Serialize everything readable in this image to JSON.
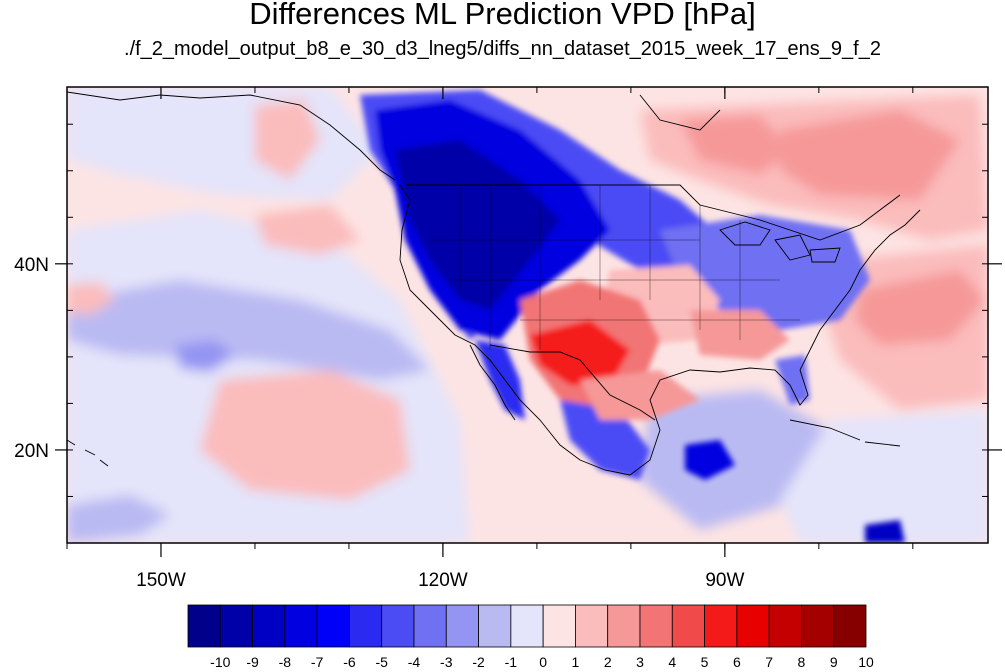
{
  "title": "Differences ML Prediction VPD [hPa]",
  "subtitle": "./f_2_model_output_b8_e_30_d3_lneg5/diffs_nn_dataset_2015_week_17_ens_9_f_2",
  "map": {
    "lon_range": [
      -160,
      -62
    ],
    "lat_range": [
      10,
      59
    ],
    "lon_ticks": [
      {
        "value": -150,
        "label": "150W"
      },
      {
        "value": -120,
        "label": "120W"
      },
      {
        "value": -90,
        "label": "90W"
      }
    ],
    "lat_ticks": [
      {
        "value": 40,
        "label": "40N"
      },
      {
        "value": 20,
        "label": "20N"
      }
    ],
    "minor_lon_step": 10,
    "minor_lat_step": 5,
    "background_color": "#fde4e4"
  },
  "colorbar": {
    "labels": [
      "-10",
      "-9",
      "-8",
      "-7",
      "-6",
      "-5",
      "-4",
      "-3",
      "-2",
      "-1",
      "0",
      "1",
      "2",
      "3",
      "4",
      "5",
      "6",
      "7",
      "8",
      "9",
      "10"
    ],
    "colors": [
      "#00008b",
      "#0000a8",
      "#0000c4",
      "#0000e0",
      "#0000fa",
      "#2a2af0",
      "#4c4cf5",
      "#7070f3",
      "#9494f3",
      "#babaf3",
      "#e4e4fa",
      "#fde4e4",
      "#fbbcbc",
      "#f69898",
      "#f27474",
      "#f04a4a",
      "#f51a1a",
      "#e60000",
      "#c40000",
      "#a50000",
      "#860000"
    ]
  },
  "regions": [
    {
      "name": "pacific-northwest-negative",
      "level": -8
    },
    {
      "name": "northern-rockies-negative",
      "level": -9
    },
    {
      "name": "great-plains-negative",
      "level": -5
    },
    {
      "name": "great-lakes-negative",
      "level": -4
    },
    {
      "name": "southwest-positive",
      "level": 6
    },
    {
      "name": "gulf-coast-positive",
      "level": 4
    },
    {
      "name": "central-mexico-mixed",
      "level": -5
    },
    {
      "name": "eastern-canada-positive",
      "level": 3
    },
    {
      "name": "atlantic-positive",
      "level": 3
    },
    {
      "name": "central-pacific-positive",
      "level": 2
    },
    {
      "name": "eastern-pacific-negative",
      "level": -2
    },
    {
      "name": "caribbean-negative",
      "level": -5
    }
  ]
}
